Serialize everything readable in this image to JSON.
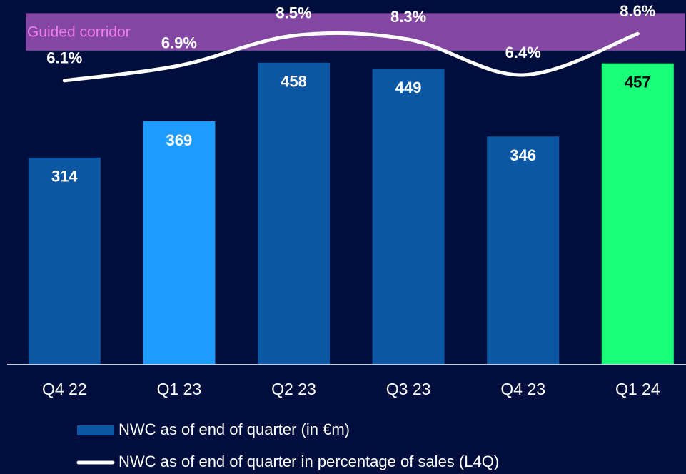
{
  "chart_data": {
    "type": "bar",
    "categories": [
      "Q4 22",
      "Q1 23",
      "Q2 23",
      "Q3 23",
      "Q4 23",
      "Q1 24"
    ],
    "series": [
      {
        "name": "NWC as of end of quarter (in €m)",
        "type": "bar",
        "color": "#0b57a4",
        "colors": [
          "#0b57a4",
          "#1e9bff",
          "#0b57a4",
          "#0b57a4",
          "#0b57a4",
          "#19ff7a"
        ],
        "label_colors": [
          "#ffffff",
          "#ffffff",
          "#ffffff",
          "#ffffff",
          "#ffffff",
          "#000000"
        ],
        "values": [
          314,
          369,
          458,
          449,
          346,
          457
        ]
      },
      {
        "name": "NWC as of end of quarter in percentage of sales (L4Q)",
        "type": "line",
        "axis": "y2",
        "color": "#ffffff",
        "values": [
          6.1,
          6.9,
          8.5,
          8.3,
          6.4,
          8.6
        ],
        "value_labels": [
          "6.1%",
          "6.9%",
          "8.5%",
          "8.3%",
          "6.4%",
          "8.6%"
        ]
      }
    ],
    "corridor": {
      "label": "Guided corridor",
      "range": [
        7.7,
        9.7
      ],
      "color": "#8a4aa8",
      "label_color": "#f07ce8"
    },
    "ylim": [
      0,
      553
    ],
    "y2lim": [
      -9.07,
      10.4
    ]
  }
}
